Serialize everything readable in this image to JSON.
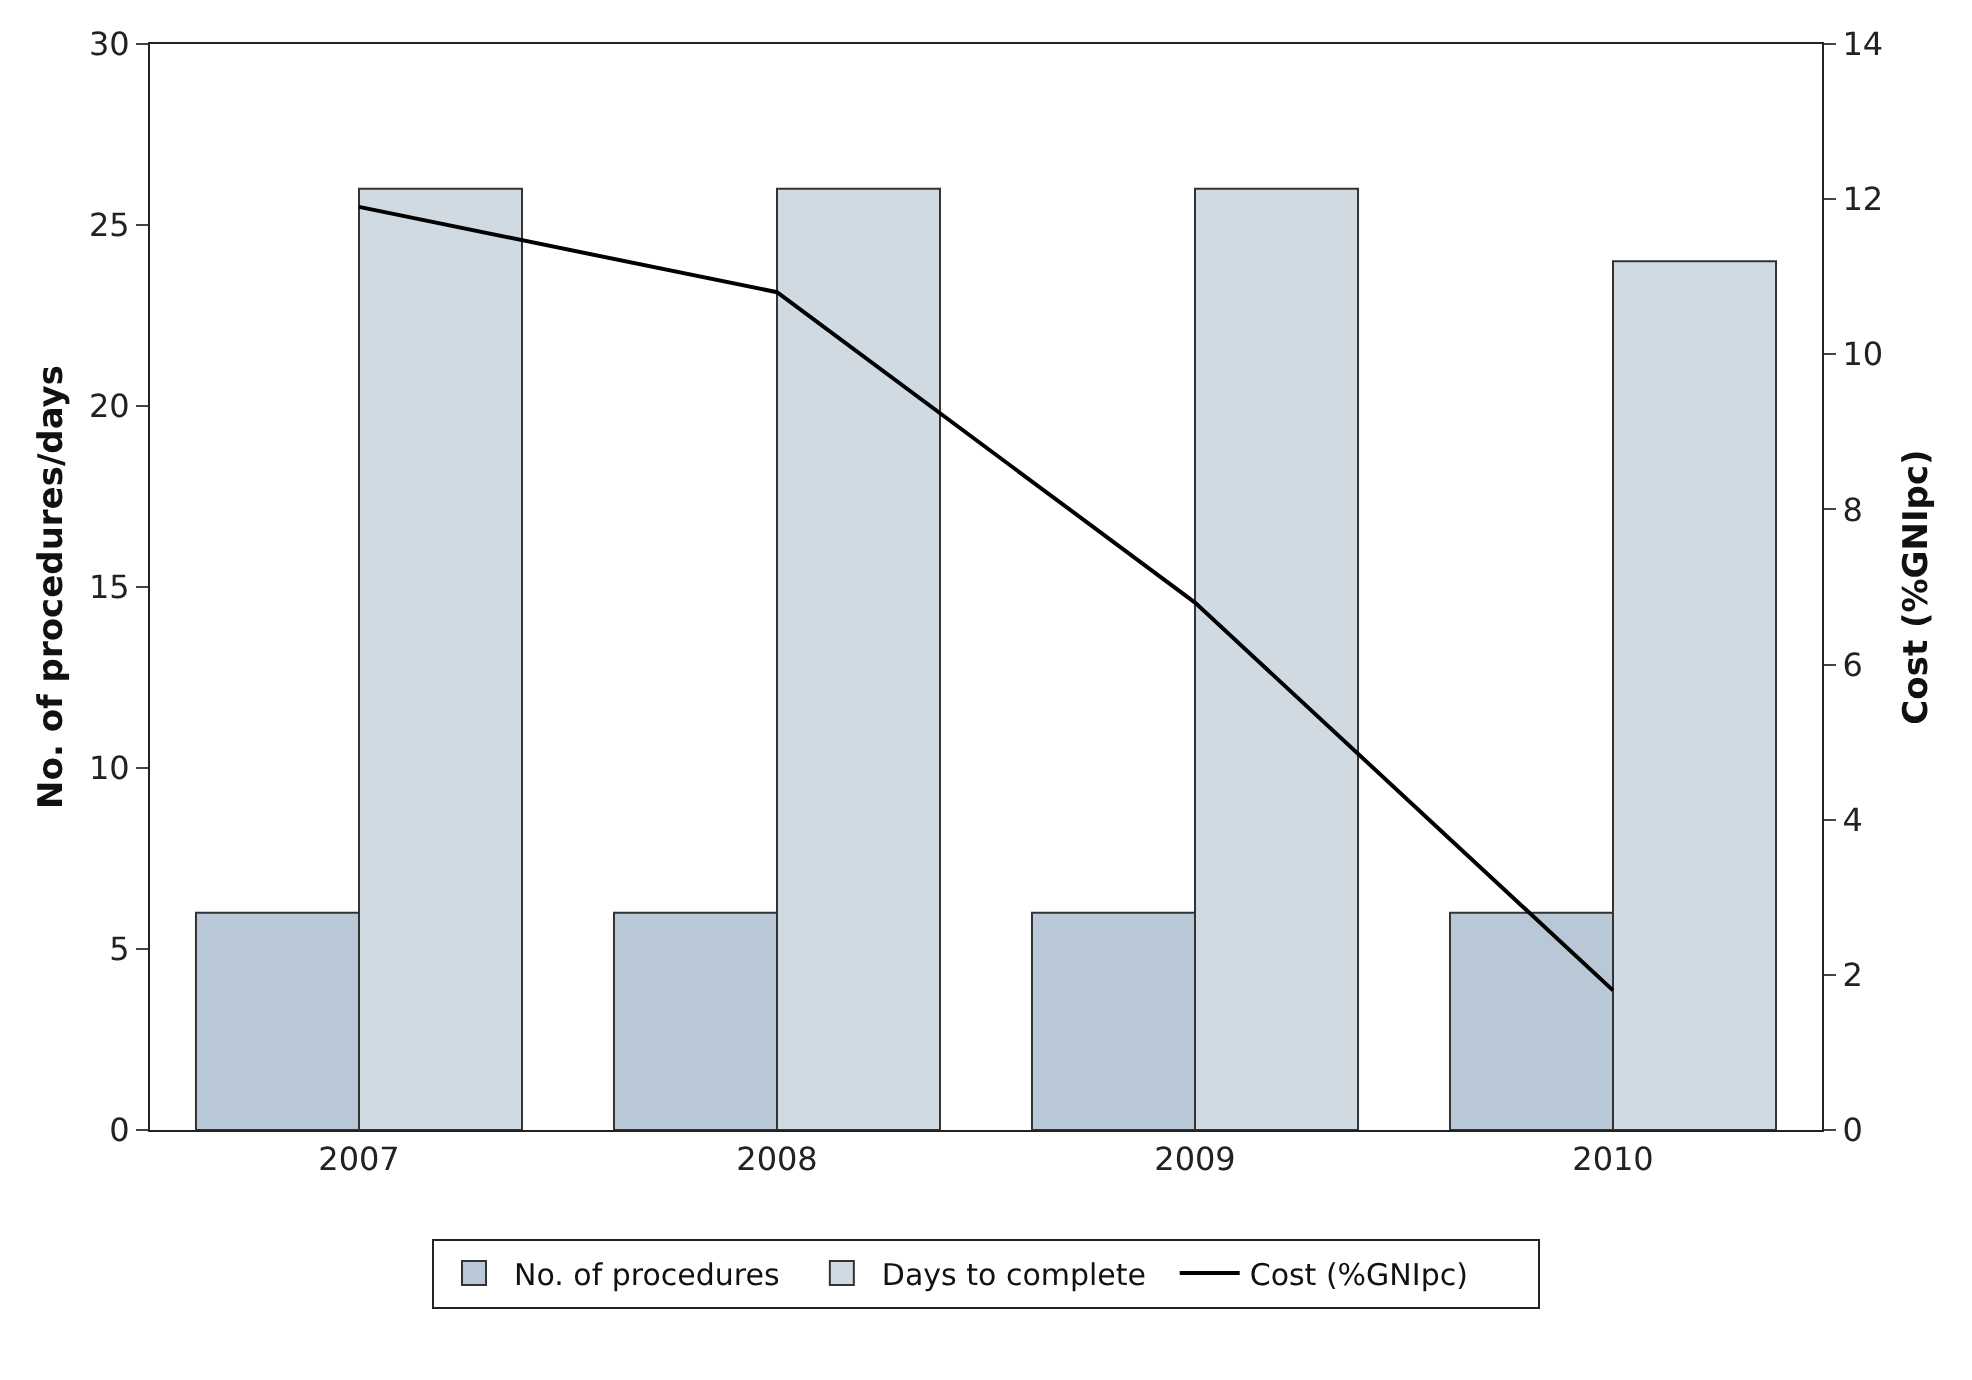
{
  "chart_data": {
    "type": "bar",
    "categories": [
      "2007",
      "2008",
      "2009",
      "2010"
    ],
    "ylabel": "No. of procedures/days",
    "y2label": "Cost (%GNIpc)",
    "ylim": [
      0,
      30
    ],
    "yticks": [
      0,
      5,
      10,
      15,
      20,
      25,
      30
    ],
    "y2lim": [
      0,
      14
    ],
    "y2ticks": [
      0,
      2,
      4,
      6,
      8,
      10,
      12,
      14
    ],
    "series": [
      {
        "name": "No. of procedures",
        "color": "#b8c8d6",
        "values": [
          6,
          6,
          6,
          6
        ]
      },
      {
        "name": "Days to complete",
        "color": "#d0dae3",
        "values": [
          26,
          26,
          26,
          24
        ]
      },
      {
        "name": "Cost (%GNIpc)",
        "type": "line",
        "axis": "y2",
        "color": "#000000",
        "values": [
          11.9,
          10.8,
          6.8,
          1.8
        ],
        "marker": "none",
        "line_style": "solid"
      }
    ],
    "grid": false,
    "legend": "bottom"
  }
}
